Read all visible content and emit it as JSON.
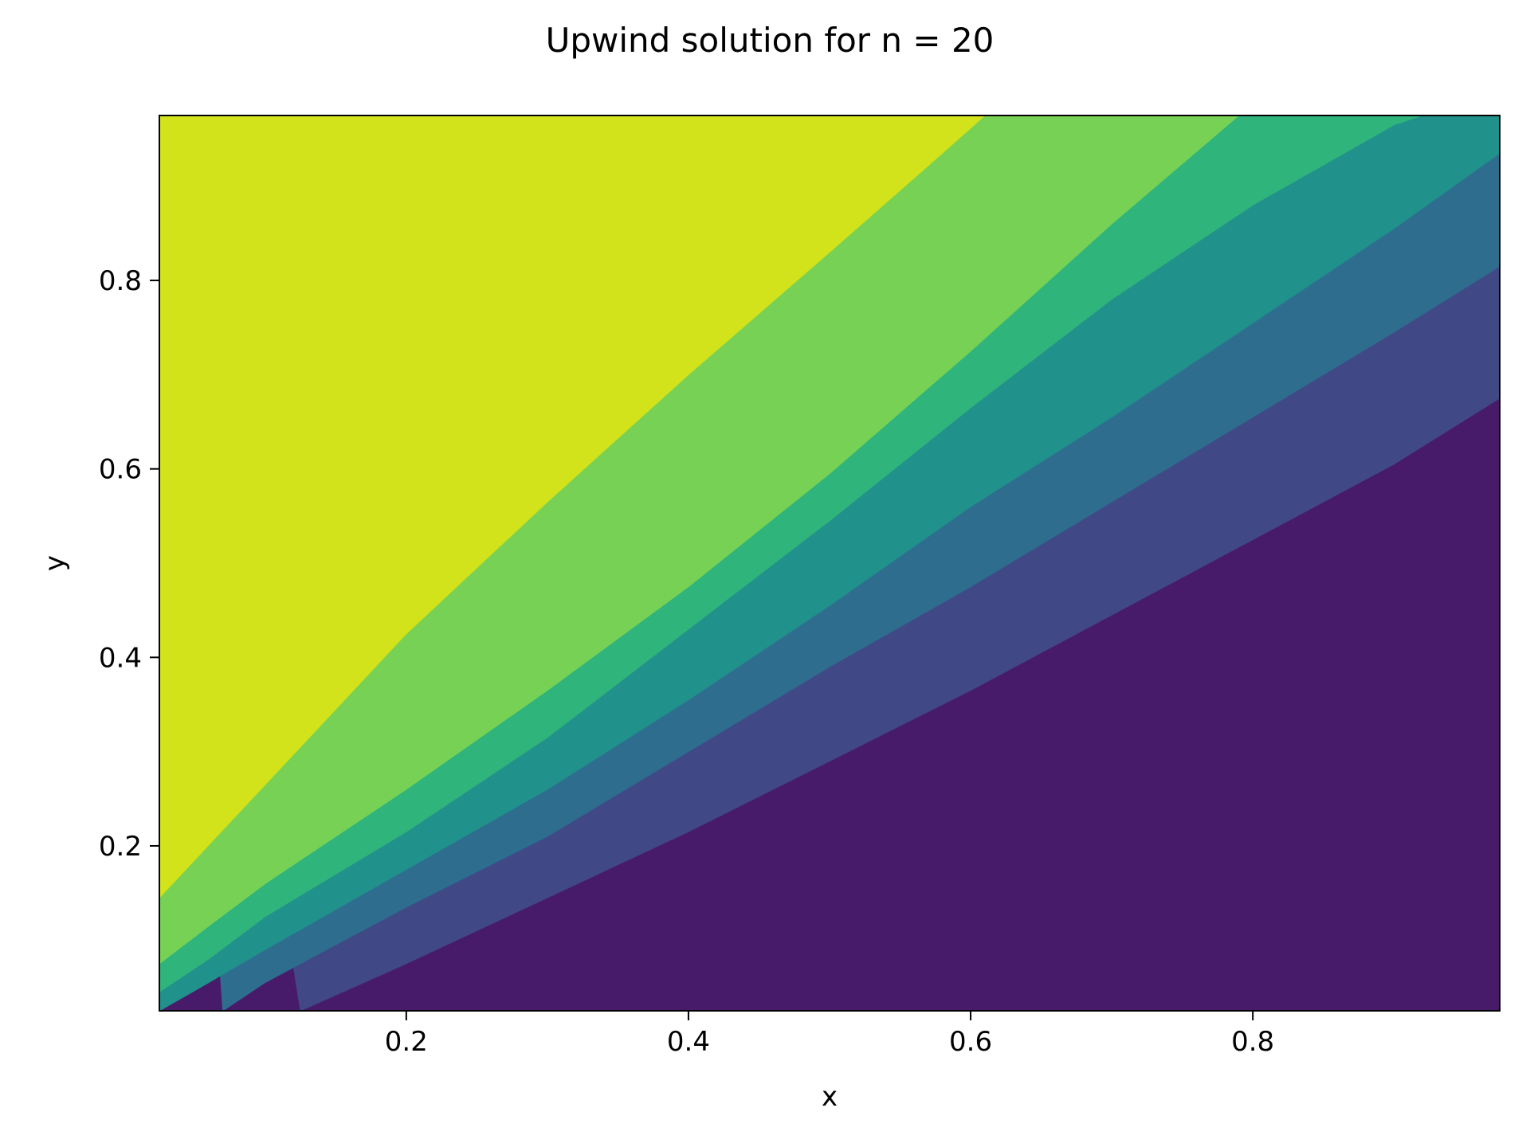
{
  "chart_data": {
    "type": "filled-contour",
    "title": "Upwind solution for n = 20",
    "xlabel": "x",
    "ylabel": "y",
    "xlim": [
      0.025,
      0.975
    ],
    "ylim": [
      0.025,
      0.975
    ],
    "xticks": [
      {
        "value": 0.2,
        "label": "0.2"
      },
      {
        "value": 0.4,
        "label": "0.4"
      },
      {
        "value": 0.6,
        "label": "0.6"
      },
      {
        "value": 0.8,
        "label": "0.8"
      }
    ],
    "yticks": [
      {
        "value": 0.2,
        "label": "0.2"
      },
      {
        "value": 0.4,
        "label": "0.4"
      },
      {
        "value": 0.6,
        "label": "0.6"
      },
      {
        "value": 0.8,
        "label": "0.8"
      }
    ],
    "colormap": "viridis",
    "level_colors": [
      "#481b6a",
      "#404886",
      "#2e6d8e",
      "#21918c",
      "#2fb47c",
      "#76d154",
      "#d2e21b"
    ],
    "level_boundaries": [
      {
        "x": [
          0.125,
          0.2,
          0.3,
          0.4,
          0.5,
          0.6,
          0.7,
          0.8,
          0.9,
          0.975
        ],
        "y": [
          0.025,
          0.075,
          0.145,
          0.215,
          0.29,
          0.365,
          0.445,
          0.525,
          0.605,
          0.675
        ]
      },
      {
        "x": [
          0.07,
          0.1,
          0.2,
          0.3,
          0.4,
          0.5,
          0.6,
          0.7,
          0.8,
          0.9,
          0.975
        ],
        "y": [
          0.025,
          0.055,
          0.135,
          0.21,
          0.3,
          0.39,
          0.475,
          0.565,
          0.655,
          0.745,
          0.815
        ]
      },
      {
        "x": [
          0.025,
          0.06,
          0.1,
          0.2,
          0.3,
          0.4,
          0.5,
          0.6,
          0.7,
          0.8,
          0.9,
          0.975
        ],
        "y": [
          0.025,
          0.055,
          0.09,
          0.175,
          0.26,
          0.355,
          0.455,
          0.56,
          0.655,
          0.755,
          0.855,
          0.935
        ]
      },
      {
        "x": [
          0.025,
          0.06,
          0.1,
          0.2,
          0.3,
          0.4,
          0.5,
          0.6,
          0.7,
          0.8,
          0.9,
          0.92
        ],
        "y": [
          0.045,
          0.08,
          0.125,
          0.215,
          0.315,
          0.43,
          0.545,
          0.665,
          0.78,
          0.88,
          0.965,
          0.975
        ]
      },
      {
        "x": [
          0.025,
          0.06,
          0.1,
          0.2,
          0.3,
          0.4,
          0.5,
          0.6,
          0.7,
          0.79
        ],
        "y": [
          0.075,
          0.115,
          0.16,
          0.26,
          0.365,
          0.475,
          0.595,
          0.725,
          0.86,
          0.975
        ]
      },
      {
        "x": [
          0.025,
          0.05,
          0.1,
          0.15,
          0.2,
          0.3,
          0.4,
          0.5,
          0.58,
          0.61
        ],
        "y": [
          0.145,
          0.185,
          0.265,
          0.345,
          0.425,
          0.565,
          0.7,
          0.83,
          0.935,
          0.975
        ]
      }
    ]
  }
}
